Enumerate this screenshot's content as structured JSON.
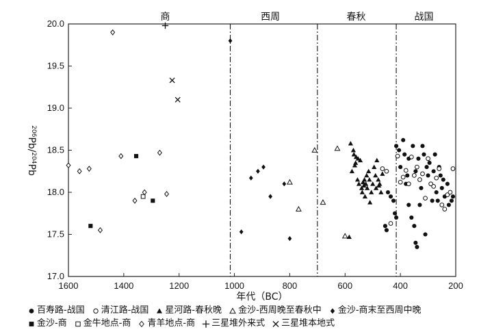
{
  "chart_data": {
    "type": "scatter",
    "title": "",
    "xlabel": "年代（BC）",
    "ylabel": "206Pb/204Pb",
    "xlim": [
      1600,
      200
    ],
    "ylim": [
      17.0,
      20.0
    ],
    "x_reversed": true,
    "x_ticks": [
      "1600",
      "1400",
      "1200",
      "1000",
      "800",
      "600",
      "400",
      "200"
    ],
    "y_ticks": [
      "17.0",
      "17.5",
      "18.0",
      "18.5",
      "19.0",
      "19.5",
      "20.0"
    ],
    "grid": false,
    "periods": [
      {
        "label": "商",
        "center": 1250
      },
      {
        "label": "西周",
        "center": 870
      },
      {
        "label": "春秋",
        "center": 560
      },
      {
        "label": "战国",
        "center": 315
      }
    ],
    "dividers": [
      1015,
      700,
      415
    ],
    "series": [
      {
        "name": "百寿路-战国",
        "marker": "filled-circle",
        "points": [
          [
            415,
            18.55
          ],
          [
            405,
            18.5
          ],
          [
            400,
            18.3
          ],
          [
            390,
            18.62
          ],
          [
            385,
            18.45
          ],
          [
            380,
            18.1
          ],
          [
            375,
            18.2
          ],
          [
            370,
            17.85
          ],
          [
            370,
            18.4
          ],
          [
            360,
            17.7
          ],
          [
            355,
            18.55
          ],
          [
            350,
            17.6
          ],
          [
            345,
            18.25
          ],
          [
            345,
            17.4
          ],
          [
            340,
            17.35
          ],
          [
            335,
            18.4
          ],
          [
            330,
            17.85
          ],
          [
            325,
            18.05
          ],
          [
            320,
            18.55
          ],
          [
            315,
            18.45
          ],
          [
            310,
            17.5
          ],
          [
            305,
            18.3
          ],
          [
            300,
            18.2
          ],
          [
            295,
            18.35
          ],
          [
            290,
            18.1
          ],
          [
            285,
            17.9
          ],
          [
            280,
            18.25
          ],
          [
            275,
            18.45
          ],
          [
            270,
            18.0
          ],
          [
            265,
            17.9
          ],
          [
            260,
            18.3
          ],
          [
            255,
            18.2
          ],
          [
            250,
            18.05
          ],
          [
            245,
            18.15
          ],
          [
            240,
            17.95
          ],
          [
            230,
            18.1
          ],
          [
            225,
            17.85
          ],
          [
            215,
            17.9
          ],
          [
            210,
            17.95
          ],
          [
            425,
            17.9
          ],
          [
            435,
            17.95
          ],
          [
            445,
            18.0
          ],
          [
            455,
            17.6
          ],
          [
            450,
            17.55
          ],
          [
            420,
            17.75
          ],
          [
            415,
            17.7
          ]
        ]
      },
      {
        "name": "清江路-战国",
        "marker": "open-circle",
        "points": [
          [
            465,
            18.28
          ],
          [
            450,
            18.25
          ],
          [
            435,
            17.63
          ],
          [
            410,
            18.43
          ],
          [
            400,
            18.12
          ],
          [
            390,
            18.18
          ],
          [
            380,
            18.26
          ],
          [
            370,
            18.1
          ],
          [
            360,
            18.42
          ],
          [
            350,
            18.2
          ],
          [
            340,
            18.3
          ],
          [
            330,
            18.15
          ],
          [
            320,
            18.22
          ],
          [
            310,
            17.93
          ],
          [
            300,
            18.4
          ],
          [
            290,
            18.1
          ],
          [
            280,
            18.07
          ],
          [
            270,
            18.17
          ],
          [
            260,
            18.28
          ],
          [
            250,
            17.85
          ],
          [
            240,
            17.8
          ],
          [
            230,
            17.97
          ],
          [
            220,
            18.0
          ],
          [
            210,
            18.28
          ]
        ]
      },
      {
        "name": "星河路-春秋晚",
        "marker": "filled-triangle",
        "points": [
          [
            580,
            18.58
          ],
          [
            575,
            18.25
          ],
          [
            570,
            18.5
          ],
          [
            568,
            18.45
          ],
          [
            565,
            18.32
          ],
          [
            562,
            18.35
          ],
          [
            560,
            18.42
          ],
          [
            555,
            18.15
          ],
          [
            553,
            18.4
          ],
          [
            550,
            18.1
          ],
          [
            545,
            18.38
          ],
          [
            540,
            18.05
          ],
          [
            538,
            18.0
          ],
          [
            535,
            18.12
          ],
          [
            532,
            18.08
          ],
          [
            530,
            18.15
          ],
          [
            528,
            17.95
          ],
          [
            525,
            18.1
          ],
          [
            522,
            18.2
          ],
          [
            520,
            18.05
          ],
          [
            515,
            18.25
          ],
          [
            512,
            18.15
          ],
          [
            510,
            17.88
          ],
          [
            505,
            18.0
          ],
          [
            500,
            18.1
          ],
          [
            495,
            18.3
          ],
          [
            490,
            18.2
          ],
          [
            488,
            18.05
          ],
          [
            485,
            18.38
          ],
          [
            480,
            18.15
          ],
          [
            478,
            18.08
          ],
          [
            475,
            18.1
          ],
          [
            470,
            18.0
          ],
          [
            465,
            18.22
          ],
          [
            585,
            17.47
          ]
        ]
      },
      {
        "name": "金沙-西周晚至春秋中",
        "marker": "open-triangle",
        "points": [
          [
            710,
            18.5
          ],
          [
            628,
            18.52
          ],
          [
            600,
            17.48
          ],
          [
            680,
            17.88
          ],
          [
            768,
            17.8
          ],
          [
            800,
            18.12
          ]
        ]
      },
      {
        "name": "金沙-商末至西周中晚",
        "marker": "filled-diamond",
        "points": [
          [
            1015,
            19.8
          ],
          [
            940,
            18.17
          ],
          [
            915,
            18.25
          ],
          [
            895,
            18.3
          ],
          [
            870,
            17.95
          ],
          [
            820,
            18.1
          ],
          [
            800,
            17.45
          ],
          [
            975,
            17.53
          ]
        ]
      },
      {
        "name": "金沙-商",
        "marker": "filled-square",
        "points": [
          [
            1355,
            18.43
          ],
          [
            1295,
            17.9
          ],
          [
            1520,
            17.6
          ]
        ]
      },
      {
        "name": "金牛地点-商",
        "marker": "open-square",
        "points": [
          [
            1330,
            17.95
          ]
        ]
      },
      {
        "name": "青羊地点-商",
        "marker": "open-diamond",
        "points": [
          [
            1440,
            19.9
          ],
          [
            1600,
            18.32
          ],
          [
            1560,
            18.25
          ],
          [
            1525,
            18.28
          ],
          [
            1410,
            18.43
          ],
          [
            1270,
            18.47
          ],
          [
            1325,
            18.0
          ],
          [
            1360,
            17.9
          ],
          [
            1245,
            17.98
          ],
          [
            1485,
            17.55
          ]
        ]
      },
      {
        "name": "三星堆外来式",
        "marker": "plus",
        "points": [
          [
            1250,
            19.98
          ]
        ]
      },
      {
        "name": "三星堆本地式",
        "marker": "cross",
        "points": [
          [
            1225,
            19.33
          ],
          [
            1205,
            19.1
          ]
        ]
      }
    ]
  },
  "legend_rows": [
    [
      0,
      1,
      2,
      3,
      4
    ],
    [
      5,
      6,
      7,
      8,
      9
    ]
  ]
}
